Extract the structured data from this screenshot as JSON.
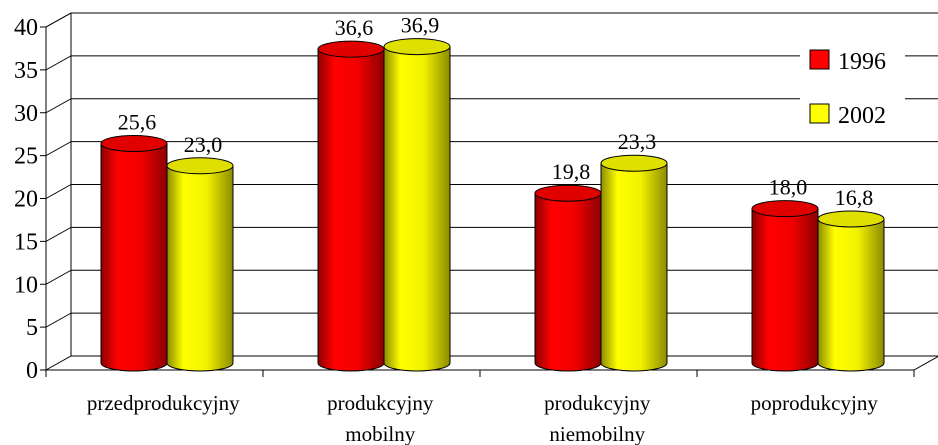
{
  "chart_data": {
    "type": "bar",
    "categories": [
      [
        "przedprodukcyjny"
      ],
      [
        "produkcyjny",
        "mobilny"
      ],
      [
        "produkcyjny",
        "niemobilny"
      ],
      [
        "poprodukcyjny"
      ]
    ],
    "series": [
      {
        "name": "1996",
        "values": [
          25.6,
          36.6,
          19.8,
          18.0
        ],
        "labels": [
          "25,6",
          "36,6",
          "19,8",
          "18,0"
        ],
        "color": "#ff0000"
      },
      {
        "name": "2002",
        "values": [
          23.0,
          36.9,
          23.3,
          16.8
        ],
        "labels": [
          "23,0",
          "36,9",
          "23,3",
          "16,8"
        ],
        "color": "#ffff00"
      }
    ],
    "y_ticks": [
      "0",
      "5",
      "10",
      "15",
      "20",
      "25",
      "30",
      "35",
      "40"
    ],
    "ylim": [
      0,
      40
    ],
    "grid": true,
    "legend_position": "top-right",
    "style": "3d-cylinder"
  }
}
